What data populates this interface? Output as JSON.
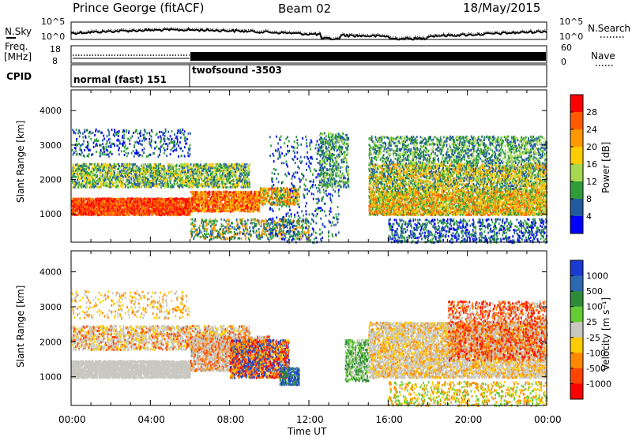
{
  "header": {
    "station": "Prince George (fitACF)",
    "beam": "Beam 02",
    "date": "18/May/2015"
  },
  "top_panels": {
    "nsky_label": "N.Sky",
    "nsearch_label": "N.Search",
    "freq_label_1": "Freq.",
    "freq_label_2": "[MHz]",
    "nave_label": "Nave",
    "cpid_label": "CPID",
    "noise_ticks": [
      "10^5",
      "10^0"
    ],
    "freq_ticks": [
      "18",
      "8"
    ],
    "nave_ticks": [
      "60",
      "0"
    ],
    "cpid_segments": [
      {
        "label": "normal (fast) 151",
        "start_hour": 0,
        "end_hour": 6
      },
      {
        "label": "twofsound -3503",
        "start_hour": 6,
        "end_hour": 24
      }
    ]
  },
  "chart_data": [
    {
      "type": "heatmap",
      "name": "power",
      "ylabel": "Slant Range [km]",
      "xlabel": "Time UT",
      "x_tick_labels": [
        "00:00",
        "04:00",
        "08:00",
        "12:00",
        "16:00",
        "20:00",
        "00:00"
      ],
      "x_range_hours": [
        0,
        24
      ],
      "y_ticks": [
        1000,
        2000,
        3000,
        4000
      ],
      "ylim": [
        180,
        4600
      ],
      "colorbar_label": "Power [dB]",
      "colorbar_ticks": [
        "28",
        "24",
        "20",
        "16",
        "12",
        "8",
        "4"
      ],
      "colorbar_colors": [
        "#ff0000",
        "#ff5a00",
        "#ff9900",
        "#ffcc00",
        "#a8d850",
        "#2f9e3a",
        "#225aa0",
        "#0000ff"
      ]
    },
    {
      "type": "heatmap",
      "name": "velocity",
      "ylabel": "Slant Range [km]",
      "xlabel": "Time UT",
      "x_tick_labels": [
        "00:00",
        "04:00",
        "08:00",
        "12:00",
        "16:00",
        "20:00",
        "00:00"
      ],
      "x_range_hours": [
        0,
        24
      ],
      "y_ticks": [
        1000,
        2000,
        3000,
        4000
      ],
      "ylim": [
        180,
        4600
      ],
      "colorbar_label": "Velocity [m s⁻¹]",
      "colorbar_ticks": [
        "1000",
        "500",
        "100",
        "25",
        "-25",
        "-100",
        "-500",
        "-1000"
      ],
      "colorbar_colors": [
        "#1a3ad0",
        "#2b6ab0",
        "#2e8b3a",
        "#66cc33",
        "#c8c8c0",
        "#ffcc00",
        "#ff8800",
        "#ff4400",
        "#ff0000"
      ]
    }
  ],
  "colors": {
    "power_ramp": [
      "#0000ff",
      "#225aa0",
      "#2f9e3a",
      "#a8d850",
      "#ffcc00",
      "#ff9900",
      "#ff5a00",
      "#ff0000"
    ],
    "velocity_gray": "#c8c8c0"
  }
}
